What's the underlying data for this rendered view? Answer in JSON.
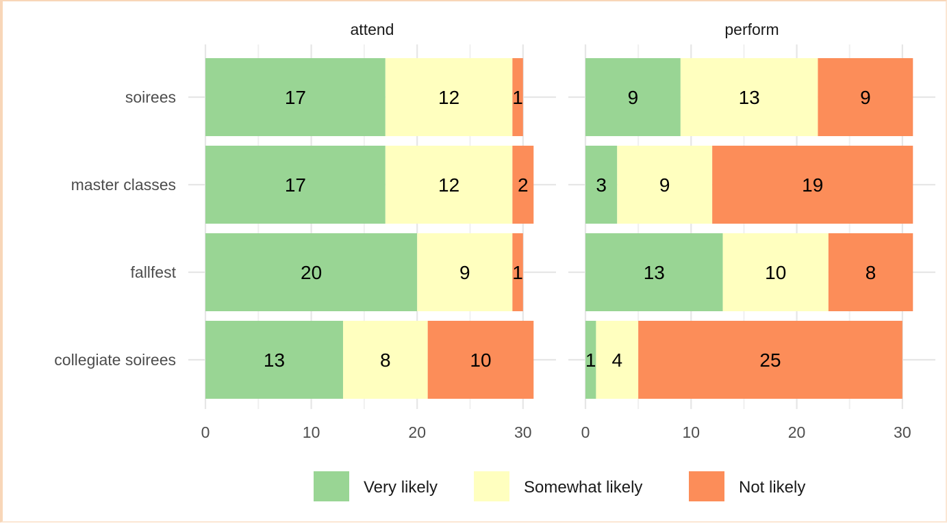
{
  "chart_data": {
    "type": "bar",
    "orientation": "horizontal",
    "stacked": true,
    "categories": [
      "soirees",
      "master classes",
      "fallfest",
      "collegiate soirees"
    ],
    "xlim": [
      0,
      31.5
    ],
    "xticks": [
      0,
      10,
      20,
      30
    ],
    "grid": true,
    "legend_position": "bottom",
    "facets": [
      {
        "label": "attend",
        "series": [
          {
            "name": "Very likely",
            "values": [
              17,
              17,
              20,
              13
            ]
          },
          {
            "name": "Somewhat likely",
            "values": [
              12,
              12,
              9,
              8
            ]
          },
          {
            "name": "Not likely",
            "values": [
              1,
              2,
              1,
              10
            ]
          }
        ]
      },
      {
        "label": "perform",
        "series": [
          {
            "name": "Very likely",
            "values": [
              9,
              3,
              13,
              1
            ]
          },
          {
            "name": "Somewhat likely",
            "values": [
              13,
              9,
              10,
              4
            ]
          },
          {
            "name": "Not likely",
            "values": [
              9,
              19,
              8,
              25
            ]
          }
        ]
      }
    ],
    "colors": {
      "Very likely": "#99d594",
      "Somewhat likely": "#ffffbf",
      "Not likely": "#fc8d59"
    }
  }
}
